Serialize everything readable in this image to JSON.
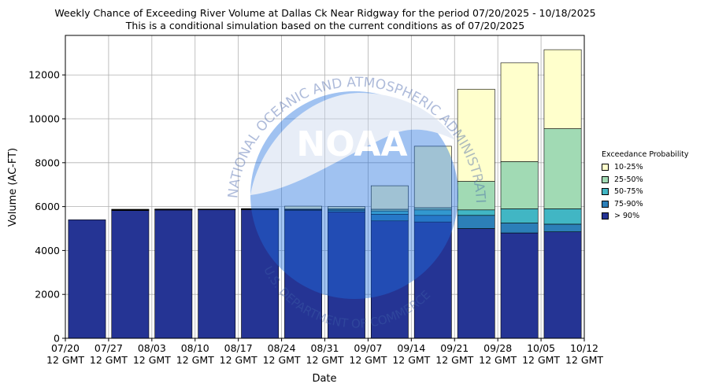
{
  "titles": {
    "line1": "Weekly Chance of Exceeding River Volume at Dallas Ck Near Ridgway for the period 07/20/2025 - 10/18/2025",
    "line2": "This is a conditional simulation based on the current conditions as of 07/20/2025"
  },
  "legend": {
    "title": "Exceedance Probability",
    "items": [
      {
        "label": "10-25%",
        "color": "#ffffcc"
      },
      {
        "label": "25-50%",
        "color": "#a1dab4"
      },
      {
        "label": "50-75%",
        "color": "#41b6c4"
      },
      {
        "label": "75-90%",
        "color": "#2c7fb8"
      },
      {
        "label": "> 90%",
        "color": "#253494"
      }
    ]
  },
  "watermark": {
    "logo_text": "NOAA",
    "ring_text": "NATIONAL OCEANIC AND ATMOSPHERIC ADMINISTRATION",
    "bottom_text": "U.S. DEPARTMENT OF COMMERCE"
  },
  "chart_data": {
    "type": "bar",
    "stacked": true,
    "title": "Weekly Chance of Exceeding River Volume at Dallas Ck Near Ridgway for the period 07/20/2025 - 10/18/2025",
    "subtitle": "This is a conditional simulation based on the current conditions as of 07/20/2025",
    "xlabel": "Date",
    "ylabel": "Volume (AC-FT)",
    "ylim": [
      0,
      13800
    ],
    "yticks": [
      0,
      2000,
      4000,
      6000,
      8000,
      10000,
      12000
    ],
    "xticks": [
      "07/20\n12 GMT",
      "07/27\n12 GMT",
      "08/03\n12 GMT",
      "08/10\n12 GMT",
      "08/17\n12 GMT",
      "08/24\n12 GMT",
      "08/31\n12 GMT",
      "09/07\n12 GMT",
      "09/14\n12 GMT",
      "09/21\n12 GMT",
      "09/28\n12 GMT",
      "10/05\n12 GMT",
      "10/12\n12 GMT"
    ],
    "grid": true,
    "legend_position": "right",
    "series_order_bottom_to_top": [
      "> 90%",
      "75-90%",
      "50-75%",
      "25-50%",
      "10-25%"
    ],
    "bars": [
      {
        "week": 0,
        "levels": [
          5400,
          5400,
          5400,
          5400,
          5400
        ]
      },
      {
        "week": 1,
        "levels": [
          5820,
          5840,
          5850,
          5860,
          5880
        ]
      },
      {
        "week": 2,
        "levels": [
          5850,
          5860,
          5870,
          5880,
          5890
        ]
      },
      {
        "week": 3,
        "levels": [
          5860,
          5870,
          5875,
          5880,
          5890
        ]
      },
      {
        "week": 4,
        "levels": [
          5860,
          5870,
          5880,
          5890,
          5910
        ]
      },
      {
        "week": 5,
        "levels": [
          5830,
          5850,
          5870,
          5890,
          6020
        ]
      },
      {
        "week": 6,
        "levels": [
          5760,
          5820,
          5870,
          5910,
          6000
        ]
      },
      {
        "week": 7,
        "levels": [
          5350,
          5650,
          5800,
          5880,
          6950
        ]
      },
      {
        "week": 8,
        "levels": [
          5300,
          5600,
          5850,
          5950,
          8750
        ]
      },
      {
        "week": 9,
        "levels": [
          5000,
          5600,
          5850,
          7150,
          11350
        ]
      },
      {
        "week": 10,
        "levels": [
          4800,
          5250,
          5900,
          8050,
          12550
        ]
      },
      {
        "week": 11,
        "levels": [
          4850,
          5200,
          5900,
          9550,
          13150
        ]
      }
    ]
  }
}
